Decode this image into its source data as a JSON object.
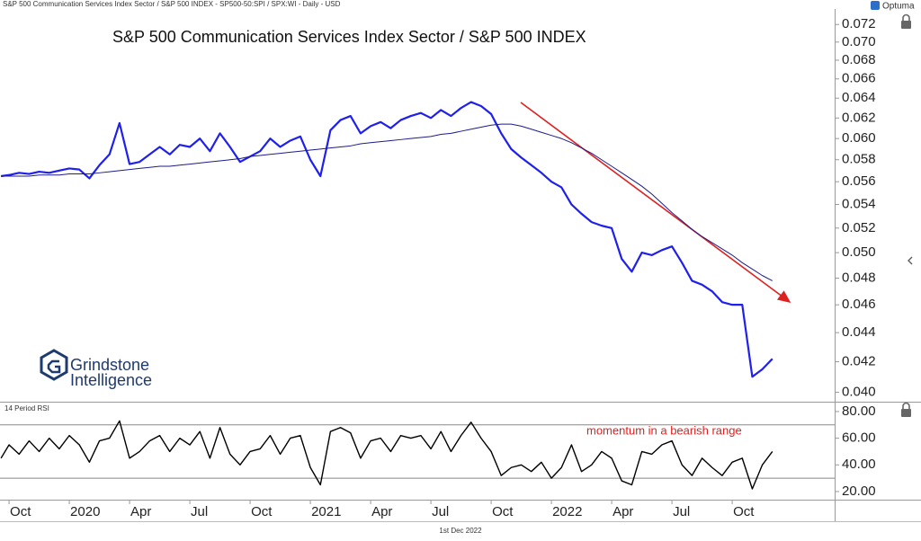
{
  "chart_data": [
    {
      "type": "line",
      "subtitle": "S&P 500 Communication Services Index Sector / S&P 500 INDEX - SP500-50:SPI / SPX:WI - Daily - USD",
      "title": "S&P 500 Communication Services Index Sector / S&P 500 INDEX",
      "source": "Optuma",
      "watermark": [
        "Grindstone",
        "Intelligence"
      ],
      "log": true,
      "x": [
        -0.4,
        0,
        0.5,
        1,
        1.5,
        2,
        2.5,
        3,
        3.5,
        4,
        4.5,
        5,
        5.5,
        6,
        6.5,
        7,
        7.5,
        8,
        8.5,
        9,
        9.5,
        10,
        10.5,
        11,
        11.5,
        12,
        12.5,
        13,
        13.5,
        14,
        14.5,
        15,
        15.5,
        16,
        16.5,
        17,
        17.5,
        18,
        18.5,
        19,
        19.5,
        20,
        20.5,
        21,
        21.5,
        22,
        22.5,
        23,
        23.5,
        24,
        24.5,
        25,
        25.5,
        26,
        26.5,
        27,
        27.5,
        28,
        28.5,
        29,
        29.5,
        30,
        30.5,
        31,
        31.5,
        32,
        32.5,
        33,
        33.5,
        34,
        34.5,
        35,
        35.5,
        36,
        36.5,
        37,
        37.5,
        38
      ],
      "xlim": [
        -0.45,
        41.1
      ],
      "ylim": [
        0.0394,
        0.0738
      ],
      "yticks": [
        {
          "value": 0.04,
          "label": "0.040"
        },
        0.042,
        0.044,
        0.046,
        0.048,
        {
          "value": 0.05,
          "label": "0.050"
        },
        0.052,
        0.054,
        0.056,
        0.058,
        {
          "value": 0.06,
          "label": "0.060"
        },
        0.062,
        0.064,
        0.066,
        0.068,
        {
          "value": 0.07,
          "label": "0.070"
        },
        0.072
      ],
      "series": [
        {
          "color": "#1f1fee",
          "width": 2.2,
          "values": [
            0.0565,
            0.0566,
            0.0568,
            0.0567,
            0.0569,
            0.0568,
            0.057,
            0.0572,
            0.0571,
            0.0563,
            0.0575,
            0.0585,
            0.0615,
            0.0576,
            0.0578,
            0.0585,
            0.0592,
            0.0585,
            0.0594,
            0.0592,
            0.06,
            0.0588,
            0.0605,
            0.0592,
            0.0578,
            0.0583,
            0.0588,
            0.06,
            0.0592,
            0.0598,
            0.0602,
            0.058,
            0.0565,
            0.0608,
            0.0618,
            0.0622,
            0.0605,
            0.0612,
            0.0616,
            0.061,
            0.0618,
            0.0622,
            0.0625,
            0.062,
            0.0628,
            0.0622,
            0.063,
            0.0636,
            0.0632,
            0.0624,
            0.0605,
            0.059,
            0.0582,
            0.0575,
            0.0568,
            0.056,
            0.0555,
            0.054,
            0.0532,
            0.0525,
            0.0522,
            0.052,
            0.0495,
            0.0485,
            0.05,
            0.0498,
            0.0502,
            0.0505,
            0.0492,
            0.0478,
            0.0475,
            0.047,
            0.0462,
            0.046,
            0.046,
            0.041,
            0.0415,
            0.0422
          ]
        },
        {
          "color": "#1c1c8c",
          "width": 1,
          "values": [
            0.0565,
            0.0565,
            0.0565,
            0.0565,
            0.0566,
            0.0566,
            0.0566,
            0.0567,
            0.0567,
            0.0567,
            0.0568,
            0.0569,
            0.057,
            0.0571,
            0.0572,
            0.0573,
            0.0574,
            0.0574,
            0.0575,
            0.0576,
            0.0577,
            0.0578,
            0.0579,
            0.058,
            0.0581,
            0.0583,
            0.0584,
            0.0585,
            0.0586,
            0.0587,
            0.0588,
            0.0589,
            0.059,
            0.0591,
            0.0592,
            0.0593,
            0.0595,
            0.0596,
            0.0597,
            0.0598,
            0.0599,
            0.06,
            0.0601,
            0.0602,
            0.0604,
            0.0605,
            0.0607,
            0.0609,
            0.0611,
            0.0613,
            0.0614,
            0.0614,
            0.0612,
            0.0609,
            0.0606,
            0.0603,
            0.06,
            0.0596,
            0.0591,
            0.0586,
            0.058,
            0.0574,
            0.0568,
            0.0562,
            0.0556,
            0.0549,
            0.0541,
            0.0533,
            0.0526,
            0.0519,
            0.0513,
            0.0508,
            0.0503,
            0.0498,
            0.0492,
            0.0487,
            0.0482,
            0.0478
          ]
        }
      ]
    },
    {
      "type": "line",
      "label": "14 Period RSI",
      "annotation": {
        "text": "momentum in a bearish range",
        "color": "#e02020"
      },
      "footer": "1st Dec 2022",
      "x": [
        -0.4,
        0,
        0.5,
        1,
        1.5,
        2,
        2.5,
        3,
        3.5,
        4,
        4.5,
        5,
        5.5,
        6,
        6.5,
        7,
        7.5,
        8,
        8.5,
        9,
        9.5,
        10,
        10.5,
        11,
        11.5,
        12,
        12.5,
        13,
        13.5,
        14,
        14.5,
        15,
        15.5,
        16,
        16.5,
        17,
        17.5,
        18,
        18.5,
        19,
        19.5,
        20,
        20.5,
        21,
        21.5,
        22,
        22.5,
        23,
        23.5,
        24,
        24.5,
        25,
        25.5,
        26,
        26.5,
        27,
        27.5,
        28,
        28.5,
        29,
        29.5,
        30,
        30.5,
        31,
        31.5,
        32,
        32.5,
        33,
        33.5,
        34,
        34.5,
        35,
        35.5,
        36,
        36.5,
        37,
        37.5,
        38
      ],
      "xlim": [
        -0.45,
        41.1
      ],
      "xticks": [
        {
          "value": 0,
          "label": "Oct"
        },
        {
          "value": 3,
          "label": "2020"
        },
        {
          "value": 6,
          "label": "Apr"
        },
        {
          "value": 9,
          "label": "Jul"
        },
        {
          "value": 12,
          "label": "Oct"
        },
        {
          "value": 15,
          "label": "2021"
        },
        {
          "value": 18,
          "label": "Apr"
        },
        {
          "value": 21,
          "label": "Jul"
        },
        {
          "value": 24,
          "label": "Oct"
        },
        {
          "value": 27,
          "label": "2022"
        },
        {
          "value": 30,
          "label": "Apr"
        },
        {
          "value": 33,
          "label": "Jul"
        },
        {
          "value": 36,
          "label": "Oct"
        }
      ],
      "ylim": [
        13.9,
        86.7
      ],
      "yticks": [
        {
          "value": 20,
          "label": "20.00"
        },
        {
          "value": 40,
          "label": "40.00"
        },
        {
          "value": 60,
          "label": "60.00"
        },
        {
          "value": 80,
          "label": "80.00"
        }
      ],
      "levels": [
        70,
        30
      ],
      "series": [
        {
          "color": "#000000",
          "width": 1.4,
          "values": [
            45,
            55,
            48,
            58,
            50,
            60,
            52,
            62,
            55,
            42,
            58,
            60,
            73,
            45,
            50,
            58,
            62,
            50,
            60,
            55,
            65,
            45,
            68,
            48,
            40,
            50,
            52,
            62,
            48,
            60,
            62,
            38,
            25,
            65,
            68,
            64,
            45,
            58,
            60,
            50,
            62,
            60,
            62,
            52,
            65,
            50,
            62,
            72,
            60,
            50,
            32,
            38,
            40,
            35,
            42,
            30,
            38,
            55,
            35,
            40,
            50,
            45,
            28,
            25,
            50,
            48,
            55,
            58,
            40,
            32,
            45,
            38,
            32,
            42,
            45,
            22,
            40,
            50
          ]
        }
      ]
    }
  ]
}
